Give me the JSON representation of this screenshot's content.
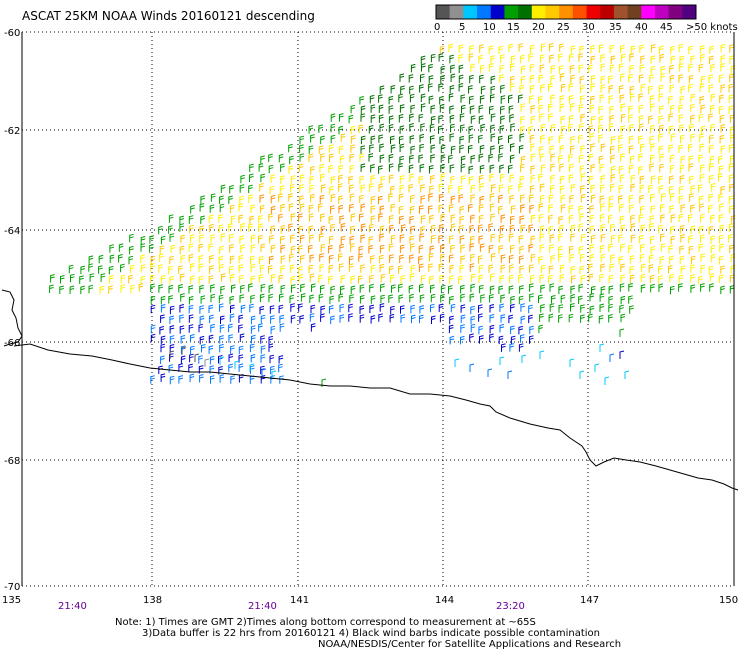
{
  "title": "ASCAT 25KM NOAA Winds 20160121 descending",
  "legend": {
    "ticks": [
      "0",
      "5",
      "10",
      "15",
      "20",
      "25",
      "30",
      "35",
      "40",
      "45",
      ">50 knots"
    ],
    "colors": [
      "#555555",
      "#909090",
      "#00c8ff",
      "#0078ff",
      "#0000cc",
      "#00a000",
      "#007000",
      "#ffee00",
      "#ffc800",
      "#ff9000",
      "#ff5000",
      "#ee0000",
      "#bb0000",
      "#a0522d",
      "#704020",
      "#ff00ff",
      "#c000c0",
      "#800080",
      "#500080"
    ]
  },
  "latitude_labels": [
    "-60",
    "-62",
    "-64",
    "-66",
    "-68",
    "-70"
  ],
  "longitude_labels": [
    "135",
    "138",
    "141",
    "144",
    "147",
    "150"
  ],
  "time_labels": [
    "21:40",
    "21:40",
    "23:20"
  ],
  "notes": [
    "Note: 1) Times are GMT 2)Times along bottom correspond to measurement at ~65S",
    "3)Data buffer is 22 hrs from 20160121 4) Black wind barbs indicate possible contamination",
    "NOAA/NESDIS/Center for Satellite Applications and Research"
  ],
  "colors": {
    "coastline": "#000000",
    "time_label": "#660099"
  }
}
